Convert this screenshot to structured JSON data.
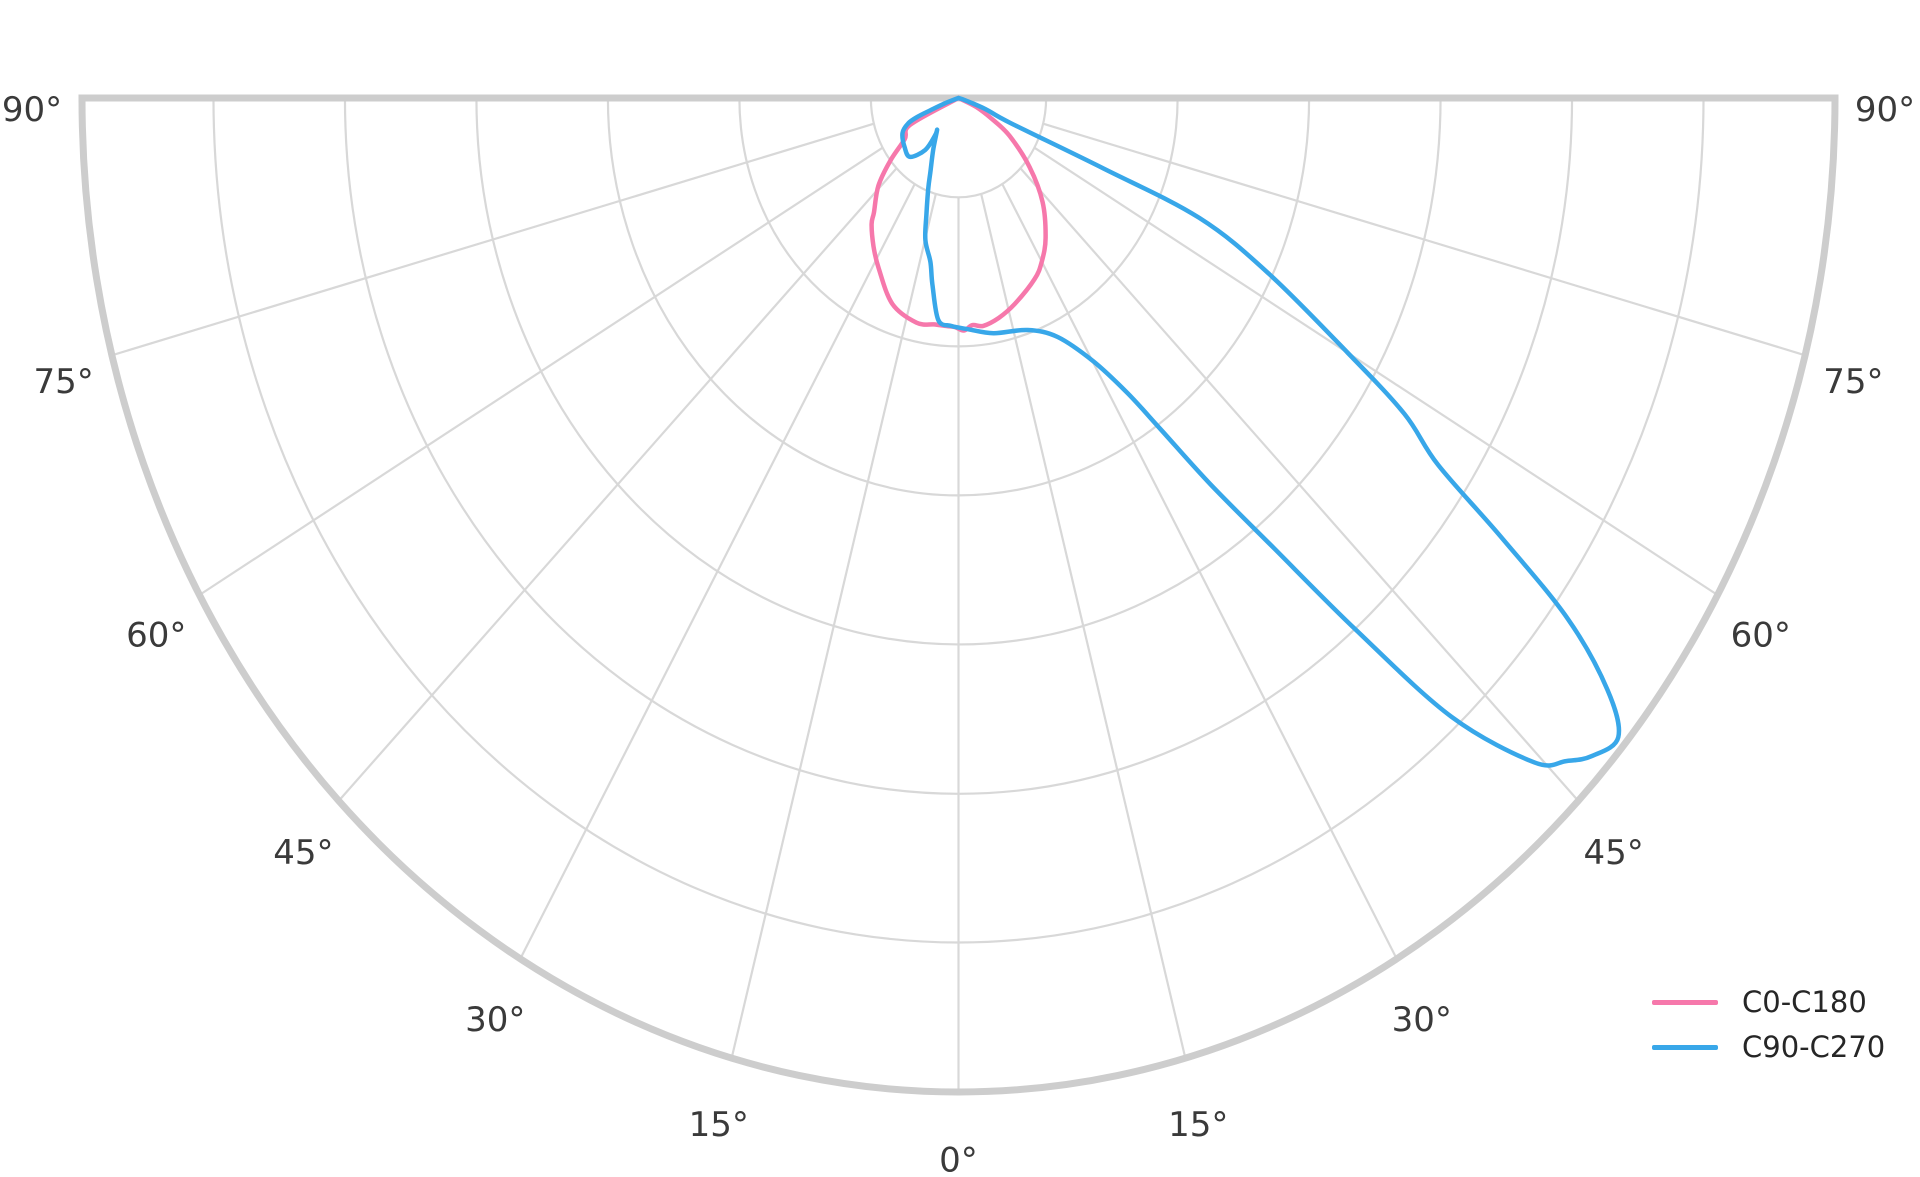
{
  "chart_data": {
    "type": "line",
    "subtype": "polar-photometric-distribution",
    "title": "",
    "angle_unit": "degrees",
    "grid": {
      "on": true,
      "spoke_step_degrees": 15,
      "spoke_angles": [
        -75,
        -60,
        -45,
        -30,
        -15,
        0,
        15,
        30,
        45,
        60,
        75
      ],
      "radial_ring_fractions": [
        0.1,
        0.25,
        0.4,
        0.55,
        0.7,
        0.85,
        1.0
      ],
      "inner_hole_fraction": 0.1,
      "ring_color": "#d8d8d8",
      "rim_color": "#cdcdcd"
    },
    "angle_ticks": [
      {
        "angle": -90,
        "label": "90°"
      },
      {
        "angle": -75,
        "label": "75°"
      },
      {
        "angle": -60,
        "label": "60°"
      },
      {
        "angle": -45,
        "label": "45°"
      },
      {
        "angle": -30,
        "label": "30°"
      },
      {
        "angle": -15,
        "label": "15°"
      },
      {
        "angle": 0,
        "label": "0°"
      },
      {
        "angle": 15,
        "label": "15°"
      },
      {
        "angle": 30,
        "label": "30°"
      },
      {
        "angle": 45,
        "label": "45°"
      },
      {
        "angle": 60,
        "label": "60°"
      },
      {
        "angle": 75,
        "label": "75°"
      },
      {
        "angle": 90,
        "label": "90°"
      }
    ],
    "legend": {
      "position": "lower right",
      "text_color": "#262626"
    },
    "series": [
      {
        "name": "C0-C180",
        "color": "#f678ab",
        "points_theta_r": [
          [
            -69,
            0.0
          ],
          [
            -64,
            0.061
          ],
          [
            -56,
            0.074
          ],
          [
            -51,
            0.1
          ],
          [
            -46,
            0.127
          ],
          [
            -40,
            0.15
          ],
          [
            -38,
            0.161
          ],
          [
            -33,
            0.178
          ],
          [
            -28,
            0.194
          ],
          [
            -20,
            0.2205
          ],
          [
            -12,
            0.231
          ],
          [
            -7,
            0.2295
          ],
          [
            -3.4,
            0.2298
          ],
          [
            -1,
            0.2305
          ],
          [
            1.5,
            0.234
          ],
          [
            4,
            0.229
          ],
          [
            7,
            0.231
          ],
          [
            11.7,
            0.226
          ],
          [
            17.2,
            0.2169
          ],
          [
            25.5,
            0.2018
          ],
          [
            30,
            0.19
          ],
          [
            35.2,
            0.1724
          ],
          [
            42.5,
            0.142
          ],
          [
            49.4,
            0.1068
          ],
          [
            56.8,
            0.0697
          ],
          [
            61,
            0.044
          ],
          [
            66,
            0.022
          ],
          [
            70,
            0.0
          ]
        ]
      },
      {
        "name": "C90-C270",
        "color": "#38a7e9",
        "points_theta_r": [
          [
            -73,
            0.0
          ],
          [
            -71,
            0.016
          ],
          [
            -69,
            0.034
          ],
          [
            -68,
            0.05
          ],
          [
            -66,
            0.063
          ],
          [
            -61,
            0.073
          ],
          [
            -51,
            0.079
          ],
          [
            -43,
            0.081
          ],
          [
            -36,
            0.0645
          ],
          [
            -35.4,
            0.046
          ],
          [
            -37,
            0.0408
          ],
          [
            -29,
            0.0596
          ],
          [
            -23.3,
            0.081
          ],
          [
            -20.8,
            0.097
          ],
          [
            -17.3,
            0.123
          ],
          [
            -14.8,
            0.148
          ],
          [
            -11,
            0.168
          ],
          [
            -9,
            0.19
          ],
          [
            -5.9,
            0.2245
          ],
          [
            -2,
            0.2295
          ],
          [
            2.8,
            0.233
          ],
          [
            9.6,
            0.24
          ],
          [
            18.7,
            0.2464
          ],
          [
            25.2,
            0.2657
          ],
          [
            30.2,
            0.307
          ],
          [
            33,
            0.354
          ],
          [
            34.7,
            0.406
          ],
          [
            36.5,
            0.484
          ],
          [
            38.5,
            0.58
          ],
          [
            40.3,
            0.703
          ],
          [
            42.1,
            0.839
          ],
          [
            44.5,
            0.937
          ],
          [
            46.1,
            0.962
          ],
          [
            47.5,
            0.98
          ],
          [
            49.5,
            0.99
          ],
          [
            51.2,
            0.95
          ],
          [
            53,
            0.87
          ],
          [
            54.5,
            0.76
          ],
          [
            56,
            0.66
          ],
          [
            58,
            0.6
          ],
          [
            60,
            0.513
          ],
          [
            63.5,
            0.395
          ],
          [
            66.3,
            0.3
          ],
          [
            66.8,
            0.18
          ],
          [
            67,
            0.065
          ],
          [
            70,
            0.033
          ],
          [
            73,
            0.008
          ],
          [
            74,
            0.0
          ]
        ]
      }
    ]
  },
  "colors": {
    "background": "#ffffff",
    "tick_label": "#3a3a3a",
    "grid_line": "#d8d8d8",
    "grid_rim": "#cdcdcd"
  }
}
